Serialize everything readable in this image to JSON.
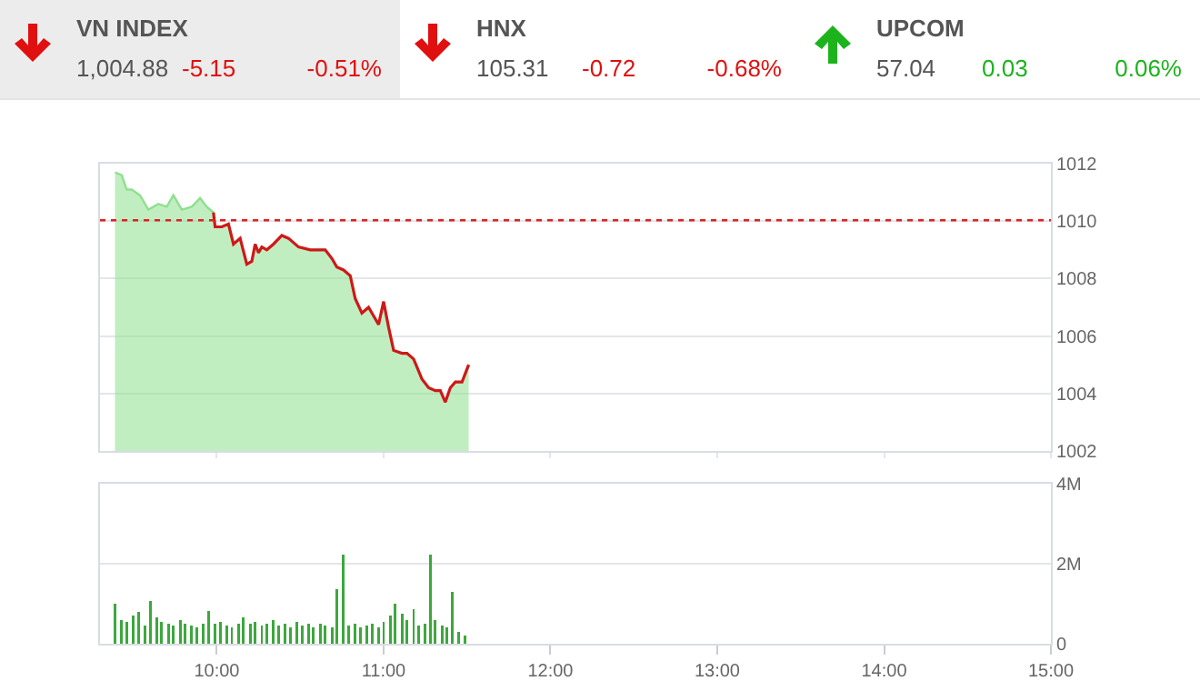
{
  "chart_data": [
    {
      "type": "other",
      "categories": [
        "VN INDEX",
        "HNX",
        "UPCOM"
      ],
      "values": [
        -5.15,
        -0.72,
        0.03
      ],
      "data_labels": true,
      "annotations": [
        "1,004.88",
        "-0.51%",
        "105.31",
        "-0.68%",
        "57.04",
        "0.06%"
      ]
    },
    {
      "type": "area",
      "grid": "y",
      "tick_labels": "y",
      "xlim": [
        9.3,
        15
      ],
      "xticks": [
        {
          "value": 10,
          "label": null
        },
        {
          "value": 11,
          "label": null
        },
        {
          "value": 12,
          "label": null
        },
        {
          "value": 13,
          "label": null
        },
        {
          "value": 14,
          "label": null
        },
        {
          "value": 15,
          "label": null
        }
      ],
      "ylim": [
        1002,
        1012
      ],
      "yticks": [
        1002,
        1004,
        1006,
        1008,
        1010,
        1012
      ],
      "x": [
        9.39,
        9.43,
        9.46,
        9.49,
        9.54,
        9.59,
        9.65,
        9.7,
        9.74,
        9.79,
        9.85,
        9.9,
        9.94,
        9.98,
        9.99,
        10.03,
        10.07,
        10.1,
        10.14,
        10.18,
        10.21,
        10.23,
        10.25,
        10.27,
        10.3,
        10.34,
        10.39,
        10.43,
        10.49,
        10.56,
        10.61,
        10.65,
        10.69,
        10.72,
        10.76,
        10.8,
        10.83,
        10.87,
        10.91,
        10.94,
        10.97,
        11.0,
        11.03,
        11.06,
        11.11,
        11.14,
        11.18,
        11.23,
        11.27,
        11.31,
        11.34,
        11.37,
        11.4,
        11.43,
        11.47,
        11.51
      ],
      "series": [
        {
          "type": "area",
          "color": "#8ee08e",
          "values": [
            1011.7,
            1011.6,
            1011.1,
            1011.1,
            1010.9,
            1010.4,
            1010.6,
            1010.5,
            1010.9,
            1010.4,
            1010.5,
            1010.8,
            1010.5,
            1010.3,
            1009.8,
            1009.8,
            1009.9,
            1009.2,
            1009.4,
            1008.5,
            1008.6,
            1009.2,
            1008.9,
            1009.1,
            1009.0,
            1009.2,
            1009.5,
            1009.4,
            1009.1,
            1009.0,
            1009.0,
            1009.0,
            1008.7,
            1008.4,
            1008.3,
            1008.1,
            1007.3,
            1006.8,
            1007.0,
            1006.7,
            1006.4,
            1007.2,
            1006.3,
            1005.5,
            1005.4,
            1005.4,
            1005.2,
            1004.5,
            1004.2,
            1004.1,
            1004.1,
            1003.7,
            1004.2,
            1004.4,
            1004.4,
            1005.0
          ]
        },
        {
          "type": "line",
          "color": "#d01818",
          "values": [
            null,
            null,
            null,
            null,
            null,
            null,
            null,
            null,
            null,
            null,
            null,
            null,
            null,
            1010.3,
            1009.8,
            1009.8,
            1009.9,
            1009.2,
            1009.4,
            1008.5,
            1008.6,
            1009.2,
            1008.9,
            1009.1,
            1009.0,
            1009.2,
            1009.5,
            1009.4,
            1009.1,
            1009.0,
            1009.0,
            1009.0,
            1008.7,
            1008.4,
            1008.3,
            1008.1,
            1007.3,
            1006.8,
            1007.0,
            1006.7,
            1006.4,
            1007.2,
            1006.3,
            1005.5,
            1005.4,
            1005.4,
            1005.2,
            1004.5,
            1004.2,
            1004.1,
            1004.1,
            1003.7,
            1004.2,
            1004.4,
            1004.4,
            1005.0
          ]
        }
      ],
      "ref_lines": [
        {
          "axis": "y",
          "value": 1010.03,
          "color": "#e02020",
          "line_style": "dotted"
        }
      ]
    },
    {
      "type": "bar",
      "grid": "y",
      "color": "#3ca83c",
      "xlim": [
        9.3,
        15
      ],
      "xticks": [
        {
          "value": 10,
          "label": "10:00"
        },
        {
          "value": 11,
          "label": "11:00"
        },
        {
          "value": 12,
          "label": "12:00"
        },
        {
          "value": 13,
          "label": "13:00"
        },
        {
          "value": 14,
          "label": "14:00"
        },
        {
          "value": 15,
          "label": "15:00"
        }
      ],
      "ylim": [
        0,
        4000000
      ],
      "yticks": [
        0,
        {
          "value": 2000000,
          "label": "2M"
        },
        {
          "value": 4000000,
          "label": "4M"
        }
      ],
      "x": [
        9.39,
        9.43,
        9.46,
        9.5,
        9.53,
        9.57,
        9.6,
        9.64,
        9.67,
        9.71,
        9.74,
        9.78,
        9.81,
        9.85,
        9.88,
        9.92,
        9.95,
        9.99,
        10.02,
        10.06,
        10.09,
        10.13,
        10.16,
        10.2,
        10.23,
        10.27,
        10.3,
        10.34,
        10.37,
        10.41,
        10.44,
        10.48,
        10.51,
        10.55,
        10.58,
        10.62,
        10.65,
        10.69,
        10.72,
        10.76,
        10.79,
        10.83,
        10.86,
        10.9,
        10.93,
        10.97,
        11.0,
        11.04,
        11.07,
        11.11,
        11.14,
        11.18,
        11.21,
        11.25,
        11.28,
        11.31,
        11.35,
        11.38,
        11.41,
        11.45,
        11.49
      ],
      "values": [
        1000000,
        600000,
        550000,
        700000,
        800000,
        450000,
        1070000,
        650000,
        550000,
        500000,
        450000,
        600000,
        500000,
        450000,
        400000,
        500000,
        810000,
        500000,
        550000,
        450000,
        400000,
        500000,
        650000,
        500000,
        550000,
        450000,
        500000,
        600000,
        450000,
        500000,
        400000,
        550000,
        450000,
        500000,
        400000,
        500000,
        450000,
        400000,
        1360000,
        2230000,
        450000,
        500000,
        400000,
        450000,
        500000,
        400000,
        550000,
        700000,
        1000000,
        750000,
        600000,
        870000,
        450000,
        500000,
        2230000,
        600000,
        450000,
        400000,
        1290000,
        300000,
        200000
      ]
    }
  ]
}
